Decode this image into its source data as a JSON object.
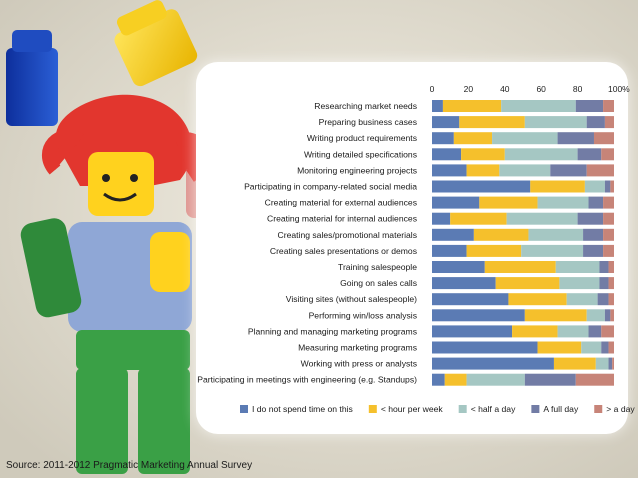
{
  "source_text": "Source: 2011-2012 Pragmatic Marketing Annual Survey",
  "chart_data": {
    "type": "bar",
    "orientation": "horizontal",
    "stacked": true,
    "xlim": [
      0,
      100
    ],
    "x_ticks": [
      "0",
      "20",
      "40",
      "60",
      "80",
      "100%"
    ],
    "legend_position": "bottom",
    "categories": [
      "Researching market needs",
      "Preparing business cases",
      "Writing product requirements",
      "Writing detailed specifications",
      "Monitoring engineering projects",
      "Participating in company-related social media",
      "Creating material for external audiences",
      "Creating material for internal audiences",
      "Creating sales/promotional materials",
      "Creating sales presentations or demos",
      "Training salespeople",
      "Going on sales calls",
      "Visiting sites (without salespeople)",
      "Performing win/loss analysis",
      "Planning and managing marketing programs",
      "Measuring marketing programs",
      "Working with press or analysts",
      "Participating in meetings with engineering (e.g. Standups)"
    ],
    "series": [
      {
        "name": "I do not spend time on this",
        "color": "#5b7bb4",
        "values": [
          6,
          15,
          12,
          16,
          19,
          54,
          26,
          10,
          23,
          19,
          29,
          35,
          42,
          51,
          44,
          58,
          67,
          7
        ]
      },
      {
        "name": "< hour per week",
        "color": "#f5c02c",
        "values": [
          32,
          36,
          21,
          24,
          18,
          30,
          32,
          31,
          30,
          30,
          39,
          35,
          32,
          34,
          25,
          24,
          23,
          12
        ]
      },
      {
        "name": "< half a day",
        "color": "#a5c7c3",
        "values": [
          41,
          34,
          36,
          40,
          28,
          11,
          28,
          39,
          30,
          34,
          24,
          22,
          17,
          10,
          17,
          11,
          7,
          32
        ]
      },
      {
        "name": "A full day",
        "color": "#727ca5",
        "values": [
          15,
          10,
          20,
          13,
          20,
          3,
          8,
          14,
          11,
          11,
          5,
          5,
          6,
          3,
          7,
          4,
          2,
          28
        ]
      },
      {
        "name": "> a day",
        "color": "#c78478",
        "values": [
          6,
          5,
          11,
          7,
          15,
          2,
          6,
          6,
          6,
          6,
          3,
          3,
          3,
          2,
          7,
          3,
          1,
          21
        ]
      }
    ]
  }
}
